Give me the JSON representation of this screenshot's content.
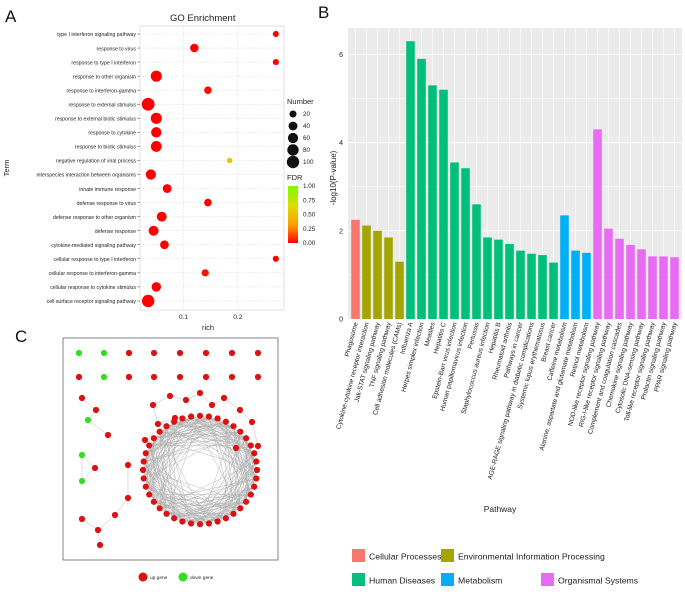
{
  "panel_labels": {
    "a": "A",
    "b": "B",
    "c": "C"
  },
  "chart_data": [
    {
      "type": "scatter",
      "title": "GO Enrichment",
      "xlabel": "rich",
      "ylabel": "Term",
      "xlim": [
        0.02,
        0.285
      ],
      "xticks": [
        0.1,
        0.2
      ],
      "xtick_labels": [
        "0.1",
        "0.2"
      ],
      "terms": [
        "type I interferon signaling pathway",
        "response to virus",
        "response to type I interferon",
        "response to other organism",
        "response to interferon-gamma",
        "response to external stimulus",
        "response to external biotic stimulus",
        "response to cytokine",
        "response to biotic stimulus",
        "negative regulation of viral process",
        "interspecies interaction between organisms",
        "innate immune response",
        "defense response to virus",
        "defense response to other organism",
        "defense response",
        "cytokine-mediated signaling pathway",
        "cellular response to type I interferon",
        "cellular response to interferon-gamma",
        "cellular response to cytokine stimulus",
        "cell surface receptor signaling pathway"
      ],
      "rich": [
        0.27,
        0.12,
        0.27,
        0.05,
        0.145,
        0.035,
        0.05,
        0.05,
        0.05,
        0.185,
        0.04,
        0.07,
        0.145,
        0.06,
        0.045,
        0.065,
        0.27,
        0.14,
        0.05,
        0.035
      ],
      "number": [
        12,
        35,
        12,
        75,
        25,
        110,
        75,
        62,
        70,
        8,
        60,
        40,
        25,
        55,
        55,
        38,
        12,
        22,
        48,
        100
      ],
      "fdr": [
        0.0,
        0.0,
        0.0,
        0.0,
        0.02,
        0.0,
        0.0,
        0.0,
        0.0,
        0.45,
        0.0,
        0.0,
        0.0,
        0.0,
        0.0,
        0.0,
        0.0,
        0.03,
        0.0,
        0.0
      ],
      "legend_number": {
        "title": "Number",
        "values": [
          20,
          40,
          60,
          80,
          100
        ],
        "labels": [
          "20",
          "40",
          "60",
          "80",
          "100"
        ]
      },
      "legend_fdr": {
        "title": "FDR",
        "ticks": [
          1.0,
          0.75,
          0.5,
          0.25,
          0.0
        ],
        "labels": [
          "1.00",
          "0.75",
          "0.50",
          "0.25",
          "0.00"
        ],
        "colors": [
          "#7CFC00",
          "#dddd00",
          "#ff9900",
          "#ff0000"
        ]
      }
    },
    {
      "type": "bar",
      "ylabel": "-log10(P-value)",
      "xlabel": "Pathway",
      "ylim": [
        0,
        6.6
      ],
      "yticks": [
        0,
        2,
        4,
        6
      ],
      "ytick_labels": [
        "0",
        "2",
        "4",
        "6"
      ],
      "categories": [
        "Phagosome",
        "Cytokine-cytokine receptor interaction",
        "Jak-STAT signaling pathway",
        "TNF signaling pathway",
        "Cell adhesion molecules (CAMs)",
        "Influenza A",
        "Herpes simplex infection",
        "Measles",
        "Hepatitis C",
        "Epstein-Barr virus infection",
        "Human papillomavirus infection",
        "Pertussis",
        "Staphylococcus aureus infection",
        "Hepatitis B",
        "Rheumatoid arthritis",
        "Pathways in cancer",
        "AGE-RAGE signaling pathway in diabetic complications",
        "Systemic lupus erythematosus",
        "Breast cancer",
        "Caffeine metabolism",
        "Alanine, aspartate and glutamate metabolism",
        "Retinol metabolism",
        "NOD-like receptor signaling pathway",
        "RIG-I-like receptor signaling pathway",
        "Complement and coagulation cascades",
        "Chemokine signaling pathway",
        "Cytosolic DNA-sensing pathway",
        "Toll-like receptor signaling pathway",
        "Prolactin signaling pathway",
        "PPAR signaling pathway"
      ],
      "values": [
        2.25,
        2.12,
        2.0,
        1.85,
        1.3,
        6.3,
        5.9,
        5.3,
        5.2,
        3.55,
        3.42,
        2.6,
        1.85,
        1.8,
        1.7,
        1.55,
        1.48,
        1.45,
        1.28,
        2.35,
        1.55,
        1.5,
        4.3,
        2.05,
        1.82,
        1.68,
        1.58,
        1.42,
        1.42,
        1.4
      ],
      "groups": [
        0,
        1,
        1,
        1,
        1,
        2,
        2,
        2,
        2,
        2,
        2,
        2,
        2,
        2,
        2,
        2,
        2,
        2,
        2,
        3,
        3,
        3,
        4,
        4,
        4,
        4,
        4,
        4,
        4,
        4
      ],
      "legend": [
        {
          "name": "Cellular Processes",
          "color": "#F8766D"
        },
        {
          "name": "Environmental Information Processing",
          "color": "#A3A500"
        },
        {
          "name": "Human Diseases",
          "color": "#00BF7D"
        },
        {
          "name": "Metabolism",
          "color": "#00B0F6"
        },
        {
          "name": "Organismal Systems",
          "color": "#E76BF3"
        }
      ]
    }
  ],
  "network": {
    "legend": [
      {
        "label": "up gene",
        "color": "#dd1111"
      },
      {
        "label": "down gene",
        "color": "#33dd22"
      }
    ]
  }
}
